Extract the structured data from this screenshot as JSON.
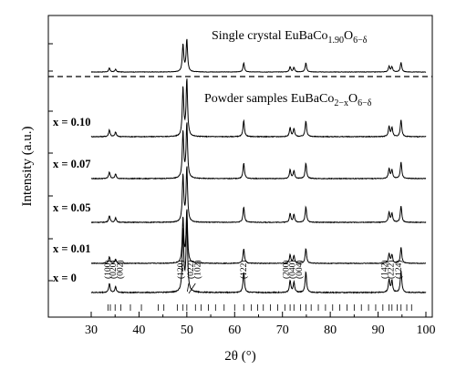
{
  "chart_data": {
    "type": "line",
    "xlabel": "2θ (°)",
    "ylabel": "Intensity (a.u.)",
    "xlim": [
      30,
      100
    ],
    "x_ticks": [
      30,
      40,
      50,
      60,
      70,
      80,
      90,
      100
    ],
    "top_panel_title": {
      "base": "Single crystal EuBaCo",
      "sub": "1.90",
      "mid": "O",
      "sub2": "6−δ"
    },
    "bottom_panel_title": {
      "base": "Powder samples EuBaCo",
      "sub": "2−x",
      "mid": "O",
      "sub2": "6−δ"
    },
    "series": [
      {
        "name": "Single crystal",
        "label": ""
      },
      {
        "name": "x = 0.10",
        "label": "x = 0.10"
      },
      {
        "name": "x = 0.07",
        "label": "x = 0.07"
      },
      {
        "name": "x = 0.05",
        "label": "x = 0.05"
      },
      {
        "name": "x = 0.01",
        "label": "x = 0.01"
      },
      {
        "name": "x = 0",
        "label": "x = 0"
      }
    ],
    "peaks": [
      {
        "pos": 33.8,
        "rel": 0.12
      },
      {
        "pos": 35.1,
        "rel": 0.08
      },
      {
        "pos": 49.2,
        "rel": 0.85
      },
      {
        "pos": 50.0,
        "rel": 1.0
      },
      {
        "pos": 61.9,
        "rel": 0.28
      },
      {
        "pos": 71.6,
        "rel": 0.16
      },
      {
        "pos": 72.4,
        "rel": 0.14
      },
      {
        "pos": 74.9,
        "rel": 0.28
      },
      {
        "pos": 92.3,
        "rel": 0.18
      },
      {
        "pos": 92.9,
        "rel": 0.16
      },
      {
        "pos": 94.8,
        "rel": 0.3
      }
    ],
    "miller_indices": [
      {
        "label": "(100)",
        "pos": 33.4
      },
      {
        "label": "(020)",
        "pos": 34.6
      },
      {
        "label": "(002)",
        "pos": 36.0
      },
      {
        "label": "(120)",
        "pos": 48.7
      },
      {
        "label": "(022)",
        "pos": 50.8
      },
      {
        "label": "(102)",
        "pos": 52.2
      },
      {
        "label": "(122)",
        "pos": 61.9
      },
      {
        "label": "(200)",
        "pos": 70.7
      },
      {
        "label": "(040)",
        "pos": 72.1
      },
      {
        "label": "(004)",
        "pos": 73.5
      },
      {
        "label": "(142)",
        "pos": 91.3
      },
      {
        "label": "(222)",
        "pos": 92.7
      },
      {
        "label": "(124)",
        "pos": 94.3
      }
    ],
    "reference_ticks": [
      33.5,
      34.0,
      35.0,
      36.2,
      38.2,
      40.5,
      44.0,
      45.2,
      48.0,
      49.2,
      50.0,
      51.8,
      53.0,
      54.5,
      56.0,
      57.8,
      60.0,
      61.9,
      63.5,
      64.8,
      66.0,
      67.5,
      69.0,
      70.5,
      71.6,
      72.4,
      73.8,
      74.9,
      76.0,
      77.5,
      79.0,
      80.5,
      82.0,
      83.5,
      85.0,
      86.5,
      88.0,
      89.5,
      91.0,
      92.3,
      92.9,
      94.0,
      94.8,
      96.0,
      97.0
    ]
  }
}
